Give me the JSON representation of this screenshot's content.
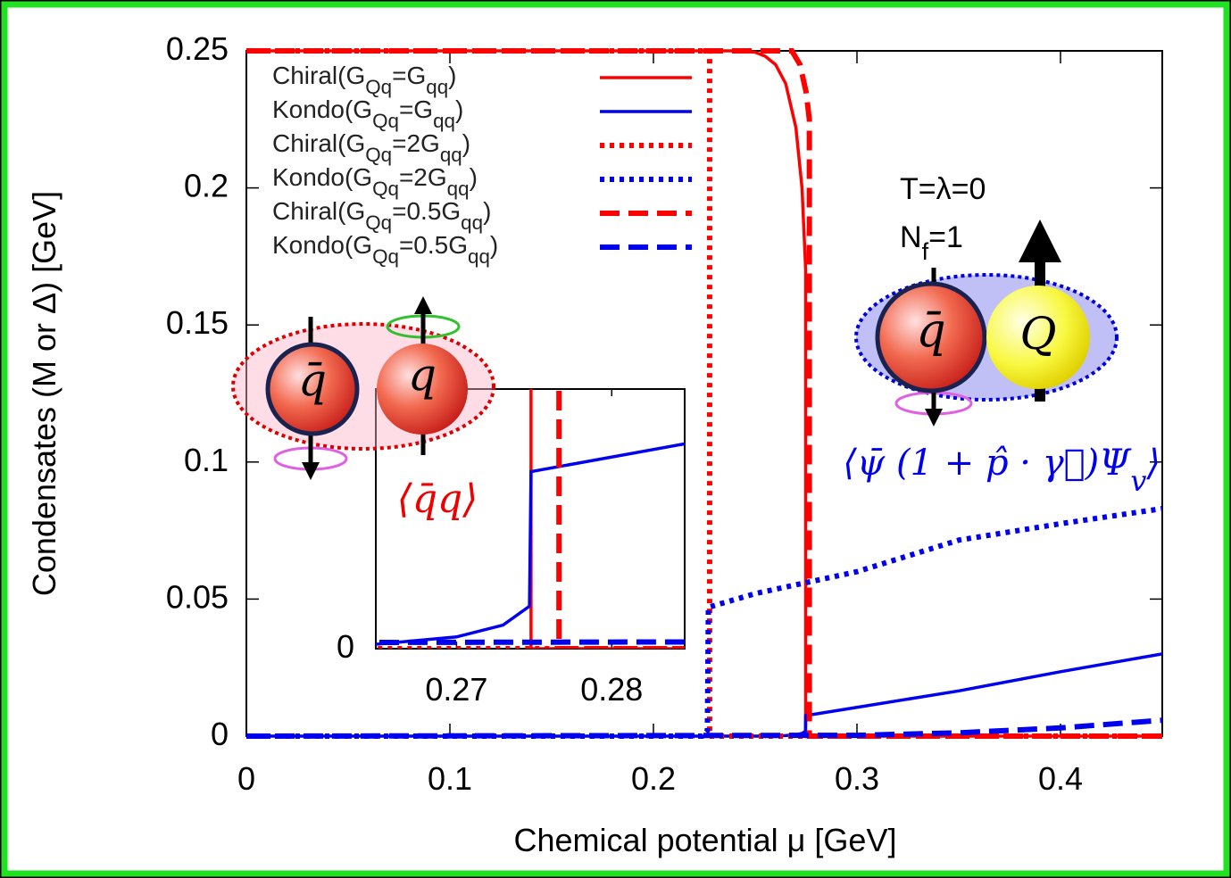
{
  "chart_data": [
    {
      "type": "line",
      "x_label": "Chemical potential μ [GeV]",
      "y_label": "Condensates (M or Δ) [GeV]",
      "xlim": [
        0,
        0.45
      ],
      "ylim": [
        0,
        0.25
      ],
      "xticks": [
        0,
        0.1,
        0.2,
        0.3,
        0.4
      ],
      "yticks": [
        0,
        0.05,
        0.1,
        0.15,
        0.2,
        0.25
      ],
      "series": [
        {
          "name": "Chiral(G_{Qq}=G_{qq})",
          "color": "#ff0000",
          "dash": "solid",
          "x": [
            0,
            0.24,
            0.25,
            0.255,
            0.26,
            0.265,
            0.27,
            0.273,
            0.2748,
            0.2748,
            0.45
          ],
          "values": [
            0.25,
            0.25,
            0.2495,
            0.248,
            0.245,
            0.238,
            0.222,
            0.2,
            0.17,
            0,
            0
          ]
        },
        {
          "name": "Kondo(G_{Qq}=G_{qq})",
          "color": "#0000ee",
          "dash": "solid",
          "x": [
            0,
            0.25,
            0.26,
            0.265,
            0.27,
            0.273,
            0.2747,
            0.2748,
            0.3,
            0.35,
            0.4,
            0.45
          ],
          "values": [
            0,
            0,
            0.0001,
            0.0002,
            0.0005,
            0.001,
            0.0018,
            0.0075,
            0.0105,
            0.0165,
            0.0235,
            0.03
          ]
        },
        {
          "name": "Chiral(G_{Qq}=2G_{qq})",
          "color": "#ff0000",
          "dash": "dotted",
          "x": [
            0,
            0.2276,
            0.2276,
            0.45
          ],
          "values": [
            0.25,
            0.25,
            0,
            0
          ]
        },
        {
          "name": "Kondo(G_{Qq}=2G_{qq})",
          "color": "#0000ee",
          "dash": "dotted",
          "x": [
            0,
            0.224,
            0.2265,
            0.227,
            0.25,
            0.3,
            0.35,
            0.4,
            0.45
          ],
          "values": [
            0,
            0,
            0.002,
            0.047,
            0.052,
            0.06,
            0.0715,
            0.0775,
            0.083
          ]
        },
        {
          "name": "Chiral(G_{Qq}=0.5G_{qq})",
          "color": "#ff0000",
          "dash": "dashed",
          "x": [
            0,
            0.268,
            0.272,
            0.275,
            0.2766,
            0.2766,
            0.45
          ],
          "values": [
            0.25,
            0.25,
            0.245,
            0.235,
            0.225,
            0,
            0
          ]
        },
        {
          "name": "Kondo(G_{Qq}=0.5G_{qq})",
          "color": "#0000ee",
          "dash": "dashed",
          "x": [
            0,
            0.3,
            0.35,
            0.4,
            0.45
          ],
          "values": [
            0,
            0.0003,
            0.0012,
            0.003,
            0.0058
          ]
        }
      ],
      "annotations": [
        "T=λ=0",
        "N_{f}=1",
        "⟨q̄q⟩",
        "⟨ψ̄ (1 + p̂ · γ⃗)Ψ_{v}⟩",
        "q̄",
        "q",
        "q̄",
        "Q"
      ]
    },
    {
      "type": "inset",
      "xlim": [
        0.2648,
        0.2847
      ],
      "ylim": [
        0,
        0.011
      ],
      "xticks": [
        0.27,
        0.28
      ],
      "yticks": [
        0
      ]
    }
  ]
}
